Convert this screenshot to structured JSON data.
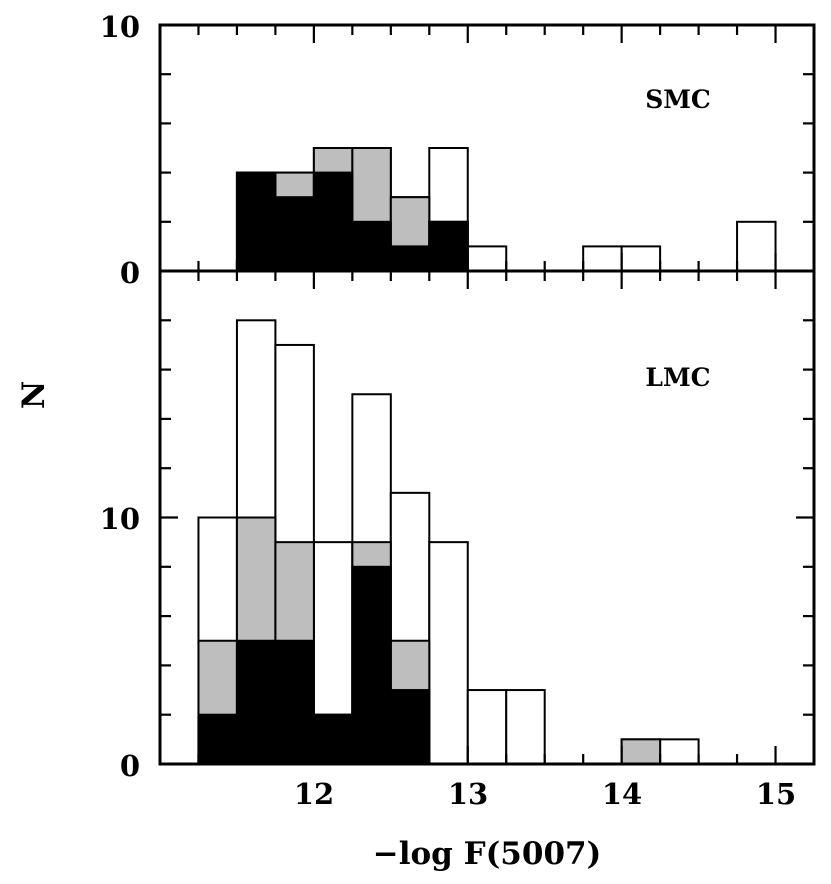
{
  "chart_data": [
    {
      "type": "bar",
      "panel": "SMC",
      "label": "SMC",
      "x_bin_width": 0.25,
      "x_bin_starts": [
        11.5,
        11.75,
        12.0,
        12.25,
        12.5,
        12.75,
        13.0,
        13.75,
        14.0,
        14.75
      ],
      "series": [
        {
          "values": [
            4,
            4,
            5,
            5,
            3,
            5,
            1,
            1,
            1,
            2
          ],
          "color": "#ffffff"
        },
        {
          "values": [
            4,
            4,
            5,
            5,
            3,
            2,
            0,
            0,
            0,
            0
          ],
          "color": "#bebebe"
        },
        {
          "values": [
            4,
            3,
            4,
            2,
            1,
            2,
            0,
            0,
            0,
            0
          ],
          "color": "#000000"
        }
      ],
      "xlim": [
        11.0,
        15.25
      ],
      "ylim": [
        0,
        10
      ],
      "y_tick_labels": [
        "0",
        "10"
      ]
    },
    {
      "type": "bar",
      "panel": "LMC",
      "label": "LMC",
      "x_bin_width": 0.25,
      "x_bin_starts": [
        11.25,
        11.5,
        11.75,
        12.0,
        12.25,
        12.5,
        12.75,
        13.0,
        13.25,
        14.0,
        14.25
      ],
      "series": [
        {
          "values": [
            10,
            18,
            17,
            9,
            15,
            11,
            9,
            3,
            3,
            1,
            1
          ],
          "color": "#ffffff"
        },
        {
          "values": [
            5,
            10,
            9,
            2,
            9,
            5,
            0,
            0,
            0,
            1,
            0
          ],
          "color": "#bebebe"
        },
        {
          "values": [
            2,
            5,
            5,
            2,
            8,
            3,
            0,
            0,
            0,
            0,
            0
          ],
          "color": "#000000"
        }
      ],
      "xlim": [
        11.0,
        15.25
      ],
      "ylim": [
        0,
        20
      ],
      "y_tick_labels": [
        "0",
        "10"
      ]
    }
  ],
  "x_tick_labels": [
    "12",
    "13",
    "14",
    "15"
  ],
  "xlabel": "−log F(5007)",
  "ylabel": "N"
}
